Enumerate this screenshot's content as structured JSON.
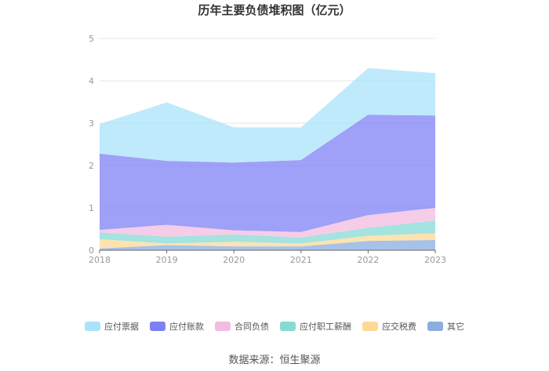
{
  "chart_data": {
    "type": "area",
    "stacked": true,
    "title": "历年主要负债堆积图（亿元）",
    "x": [
      "2018",
      "2019",
      "2020",
      "2021",
      "2022",
      "2023"
    ],
    "ylim": [
      0,
      5
    ],
    "yticks": [
      "0",
      "1",
      "2",
      "3",
      "4",
      "5"
    ],
    "grid": true,
    "legend_position": "bottom",
    "series": [
      {
        "name": "其它",
        "color": "#8aaee0",
        "values": [
          0.04,
          0.12,
          0.09,
          0.09,
          0.22,
          0.24
        ]
      },
      {
        "name": "应交税费",
        "color": "#fdd996",
        "values": [
          0.22,
          0.04,
          0.11,
          0.07,
          0.12,
          0.16
        ]
      },
      {
        "name": "应付职工薪酬",
        "color": "#86dad4",
        "values": [
          0.16,
          0.16,
          0.17,
          0.14,
          0.19,
          0.3
        ]
      },
      {
        "name": "合同负债",
        "color": "#f2bce0",
        "values": [
          0.06,
          0.28,
          0.1,
          0.13,
          0.3,
          0.3
        ]
      },
      {
        "name": "应付账款",
        "color": "#7f80f5",
        "values": [
          1.8,
          1.51,
          1.6,
          1.7,
          2.37,
          2.18
        ]
      },
      {
        "name": "应付票据",
        "color": "#a9e3fb",
        "values": [
          0.7,
          1.38,
          0.83,
          0.77,
          1.1,
          1.0
        ]
      }
    ]
  },
  "source_text": "数据来源：恒生聚源"
}
